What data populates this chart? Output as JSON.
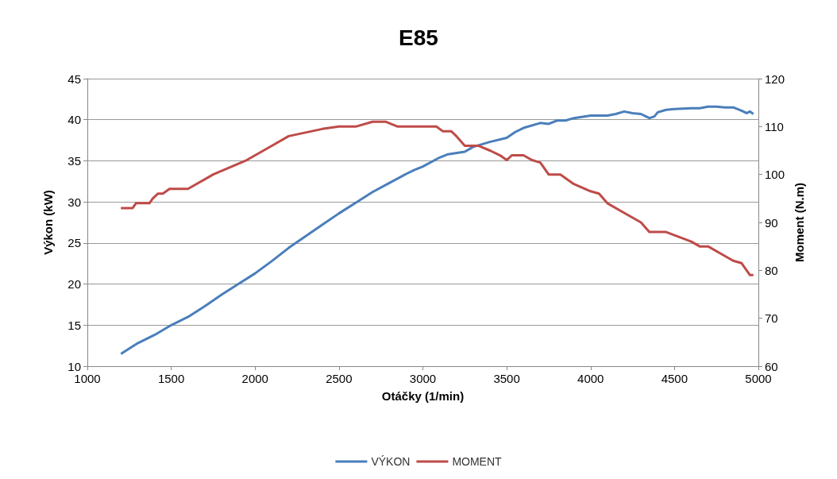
{
  "chart_data": {
    "type": "line",
    "title": "E85",
    "xlabel": "Otáčky (1/min)",
    "ylabel": "Výkon (kW)",
    "y2label": "Moment (N.m)",
    "xlim": [
      1000,
      5000
    ],
    "xticks": [
      1000,
      1500,
      2000,
      2500,
      3000,
      3500,
      4000,
      4500,
      5000
    ],
    "ylim": [
      10,
      45
    ],
    "yticks": [
      10,
      15,
      20,
      25,
      30,
      35,
      40,
      45
    ],
    "y2lim": [
      60,
      120
    ],
    "y2ticks": [
      60,
      70,
      80,
      90,
      100,
      110,
      120
    ],
    "grid": "y",
    "legend": "bottom",
    "marker": "none",
    "line_style": "solid",
    "series": [
      {
        "name": "VÝKON",
        "color": "#4a7ebb",
        "x": [
          1200,
          1300,
          1400,
          1500,
          1600,
          1700,
          1800,
          1900,
          2000,
          2100,
          2200,
          2300,
          2400,
          2500,
          2600,
          2700,
          2800,
          2900,
          2950,
          3000,
          3100,
          3150,
          3250,
          3300,
          3400,
          3500,
          3550,
          3600,
          3700,
          3750,
          3800,
          3850,
          3900,
          4000,
          4050,
          4100,
          4150,
          4200,
          4250,
          4300,
          4350,
          4380,
          4400,
          4450,
          4500,
          4600,
          4650,
          4700,
          4750,
          4800,
          4850,
          4900,
          4930,
          4950,
          4970
        ],
        "values": [
          11.5,
          12.8,
          13.8,
          15,
          16,
          17.3,
          18.7,
          20,
          21.3,
          22.8,
          24.4,
          25.8,
          27.2,
          28.6,
          29.9,
          31.2,
          32.3,
          33.4,
          33.9,
          34.3,
          35.4,
          35.8,
          36.1,
          36.7,
          37.3,
          37.8,
          38.5,
          39,
          39.6,
          39.5,
          39.9,
          39.9,
          40.2,
          40.5,
          40.5,
          40.5,
          40.7,
          41,
          40.8,
          40.7,
          40.2,
          40.4,
          40.9,
          41.2,
          41.3,
          41.4,
          41.4,
          41.6,
          41.6,
          41.5,
          41.5,
          41.1,
          40.8,
          41,
          40.7
        ]
      },
      {
        "name": "MOMENT",
        "color": "#be4b48",
        "axis": "y2",
        "x": [
          1200,
          1270,
          1290,
          1370,
          1390,
          1420,
          1450,
          1490,
          1600,
          1750,
          1950,
          2100,
          2200,
          2400,
          2500,
          2600,
          2700,
          2780,
          2850,
          3000,
          3080,
          3120,
          3170,
          3200,
          3250,
          3330,
          3400,
          3460,
          3500,
          3530,
          3600,
          3650,
          3700,
          3750,
          3820,
          3900,
          4000,
          4050,
          4100,
          4200,
          4300,
          4350,
          4450,
          4600,
          4650,
          4700,
          4800,
          4850,
          4900,
          4950,
          4970
        ],
        "values": [
          93,
          93,
          94,
          94,
          95,
          96,
          96,
          97,
          97,
          100,
          103,
          106,
          108,
          109.5,
          110,
          110,
          111,
          111,
          110,
          110,
          110,
          109,
          109,
          108,
          106,
          106,
          105,
          104,
          103,
          104,
          104,
          103,
          102.5,
          100,
          100,
          98,
          96.5,
          96,
          94,
          92,
          90,
          88,
          88,
          86,
          85,
          85,
          83,
          82,
          81.5,
          79,
          79
        ]
      }
    ]
  }
}
